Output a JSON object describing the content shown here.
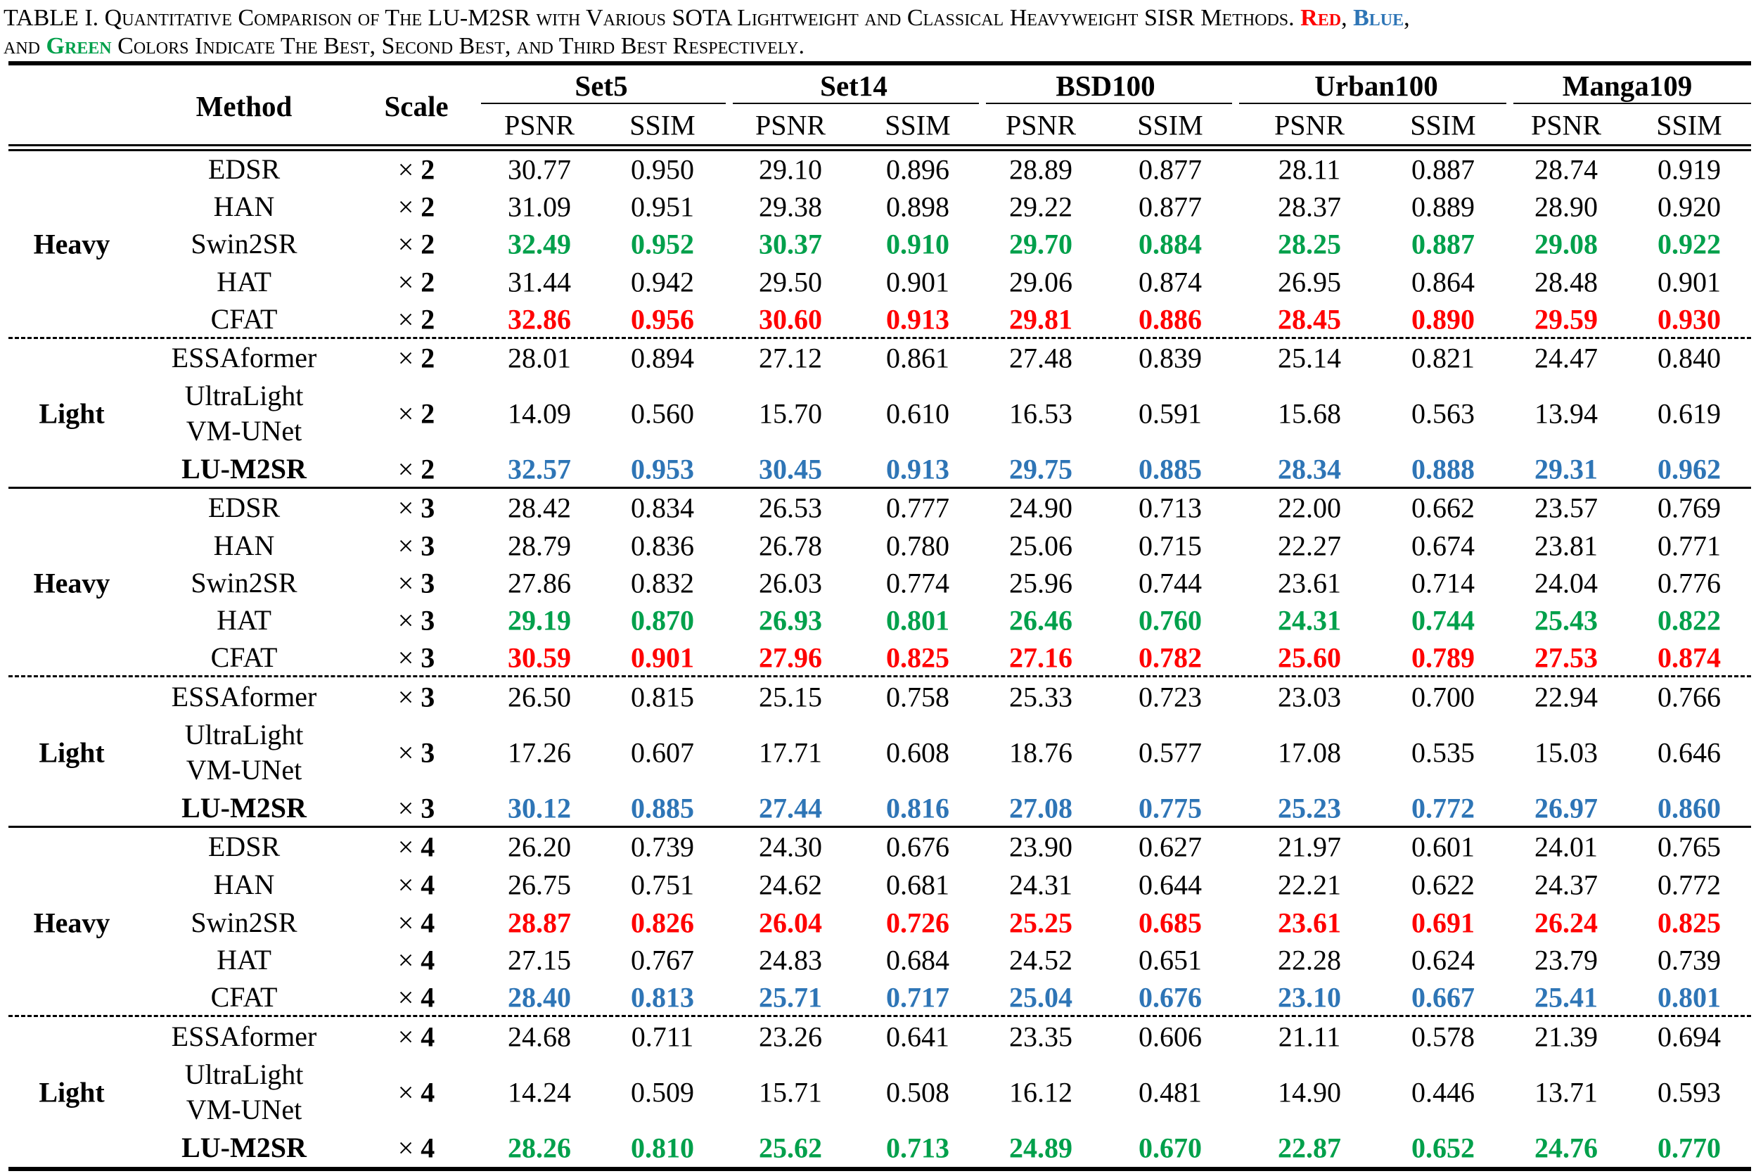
{
  "caption": {
    "lead": "TABLE I. ",
    "line1": "Quantitative Comparison of The LU-M2SR with Various SOTA Lightweight and Classical Heavyweight SISR Methods. ",
    "red": "Red",
    "sep1": ", ",
    "blue": "Blue",
    "sep2": ",",
    "and": "and ",
    "green": "Green",
    "line2": " Colors Indicate The Best, Second Best, and Third Best Respectively."
  },
  "colors": {
    "best": "#ff0000",
    "second": "#2e75b6",
    "third": "#00a04b"
  },
  "header": {
    "method": "Method",
    "scale": "Scale",
    "datasets": [
      "Set5",
      "Set14",
      "BSD100",
      "Urban100",
      "Manga109"
    ],
    "metrics": [
      "PSNR",
      "SSIM"
    ]
  },
  "blocks": [
    {
      "group": "Heavy",
      "rows": [
        {
          "method": [
            "EDSR"
          ],
          "bold": false,
          "scale_sym": "× ",
          "scale_n": "2",
          "values": [
            "30.77",
            "0.950",
            "29.10",
            "0.896",
            "28.89",
            "0.877",
            "28.11",
            "0.887",
            "28.74",
            "0.919"
          ],
          "rank": ""
        },
        {
          "method": [
            "HAN"
          ],
          "bold": false,
          "scale_sym": "× ",
          "scale_n": "2",
          "values": [
            "31.09",
            "0.951",
            "29.38",
            "0.898",
            "29.22",
            "0.877",
            "28.37",
            "0.889",
            "28.90",
            "0.920"
          ],
          "rank": ""
        },
        {
          "method": [
            "Swin2SR"
          ],
          "bold": false,
          "scale_sym": "× ",
          "scale_n": "2",
          "values": [
            "32.49",
            "0.952",
            "30.37",
            "0.910",
            "29.70",
            "0.884",
            "28.25",
            "0.887",
            "29.08",
            "0.922"
          ],
          "rank": "green"
        },
        {
          "method": [
            "HAT"
          ],
          "bold": false,
          "scale_sym": "× ",
          "scale_n": "2",
          "values": [
            "31.44",
            "0.942",
            "29.50",
            "0.901",
            "29.06",
            "0.874",
            "26.95",
            "0.864",
            "28.48",
            "0.901"
          ],
          "rank": ""
        },
        {
          "method": [
            "CFAT"
          ],
          "bold": false,
          "scale_sym": "× ",
          "scale_n": "2",
          "values": [
            "32.86",
            "0.956",
            "30.60",
            "0.913",
            "29.81",
            "0.886",
            "28.45",
            "0.890",
            "29.59",
            "0.930"
          ],
          "rank": "red"
        }
      ]
    },
    {
      "group": "Light",
      "rows": [
        {
          "method": [
            "ESSAformer"
          ],
          "bold": false,
          "scale_sym": "× ",
          "scale_n": "2",
          "values": [
            "28.01",
            "0.894",
            "27.12",
            "0.861",
            "27.48",
            "0.839",
            "25.14",
            "0.821",
            "24.47",
            "0.840"
          ],
          "rank": ""
        },
        {
          "method": [
            "UltraLight",
            "VM-UNet"
          ],
          "bold": false,
          "scale_sym": "× ",
          "scale_n": "2",
          "values": [
            "14.09",
            "0.560",
            "15.70",
            "0.610",
            "16.53",
            "0.591",
            "15.68",
            "0.563",
            "13.94",
            "0.619"
          ],
          "rank": ""
        },
        {
          "method": [
            "LU-M2SR"
          ],
          "bold": true,
          "scale_sym": "× ",
          "scale_n": "2",
          "values": [
            "32.57",
            "0.953",
            "30.45",
            "0.913",
            "29.75",
            "0.885",
            "28.34",
            "0.888",
            "29.31",
            "0.962"
          ],
          "rank": "blue"
        }
      ]
    },
    {
      "group": "Heavy",
      "rows": [
        {
          "method": [
            "EDSR"
          ],
          "bold": false,
          "scale_sym": "× ",
          "scale_n": "3",
          "values": [
            "28.42",
            "0.834",
            "26.53",
            "0.777",
            "24.90",
            "0.713",
            "22.00",
            "0.662",
            "23.57",
            "0.769"
          ],
          "rank": ""
        },
        {
          "method": [
            "HAN"
          ],
          "bold": false,
          "scale_sym": "× ",
          "scale_n": "3",
          "values": [
            "28.79",
            "0.836",
            "26.78",
            "0.780",
            "25.06",
            "0.715",
            "22.27",
            "0.674",
            "23.81",
            "0.771"
          ],
          "rank": ""
        },
        {
          "method": [
            "Swin2SR"
          ],
          "bold": false,
          "scale_sym": "× ",
          "scale_n": "3",
          "values": [
            "27.86",
            "0.832",
            "26.03",
            "0.774",
            "25.96",
            "0.744",
            "23.61",
            "0.714",
            "24.04",
            "0.776"
          ],
          "rank": ""
        },
        {
          "method": [
            "HAT"
          ],
          "bold": false,
          "scale_sym": "× ",
          "scale_n": "3",
          "values": [
            "29.19",
            "0.870",
            "26.93",
            "0.801",
            "26.46",
            "0.760",
            "24.31",
            "0.744",
            "25.43",
            "0.822"
          ],
          "rank": "green"
        },
        {
          "method": [
            "CFAT"
          ],
          "bold": false,
          "scale_sym": "× ",
          "scale_n": "3",
          "values": [
            "30.59",
            "0.901",
            "27.96",
            "0.825",
            "27.16",
            "0.782",
            "25.60",
            "0.789",
            "27.53",
            "0.874"
          ],
          "rank": "red"
        }
      ]
    },
    {
      "group": "Light",
      "rows": [
        {
          "method": [
            "ESSAformer"
          ],
          "bold": false,
          "scale_sym": "× ",
          "scale_n": "3",
          "values": [
            "26.50",
            "0.815",
            "25.15",
            "0.758",
            "25.33",
            "0.723",
            "23.03",
            "0.700",
            "22.94",
            "0.766"
          ],
          "rank": ""
        },
        {
          "method": [
            "UltraLight",
            "VM-UNet"
          ],
          "bold": false,
          "scale_sym": "× ",
          "scale_n": "3",
          "values": [
            "17.26",
            "0.607",
            "17.71",
            "0.608",
            "18.76",
            "0.577",
            "17.08",
            "0.535",
            "15.03",
            "0.646"
          ],
          "rank": ""
        },
        {
          "method": [
            "LU-M2SR"
          ],
          "bold": true,
          "scale_sym": "× ",
          "scale_n": "3",
          "values": [
            "30.12",
            "0.885",
            "27.44",
            "0.816",
            "27.08",
            "0.775",
            "25.23",
            "0.772",
            "26.97",
            "0.860"
          ],
          "rank": "blue"
        }
      ]
    },
    {
      "group": "Heavy",
      "rows": [
        {
          "method": [
            "EDSR"
          ],
          "bold": false,
          "scale_sym": "× ",
          "scale_n": "4",
          "values": [
            "26.20",
            "0.739",
            "24.30",
            "0.676",
            "23.90",
            "0.627",
            "21.97",
            "0.601",
            "24.01",
            "0.765"
          ],
          "rank": ""
        },
        {
          "method": [
            "HAN"
          ],
          "bold": false,
          "scale_sym": "× ",
          "scale_n": "4",
          "values": [
            "26.75",
            "0.751",
            "24.62",
            "0.681",
            "24.31",
            "0.644",
            "22.21",
            "0.622",
            "24.37",
            "0.772"
          ],
          "rank": ""
        },
        {
          "method": [
            "Swin2SR"
          ],
          "bold": false,
          "scale_sym": "× ",
          "scale_n": "4",
          "values": [
            "28.87",
            "0.826",
            "26.04",
            "0.726",
            "25.25",
            "0.685",
            "23.61",
            "0.691",
            "26.24",
            "0.825"
          ],
          "rank": "red"
        },
        {
          "method": [
            "HAT"
          ],
          "bold": false,
          "scale_sym": "× ",
          "scale_n": "4",
          "values": [
            "27.15",
            "0.767",
            "24.83",
            "0.684",
            "24.52",
            "0.651",
            "22.28",
            "0.624",
            "23.79",
            "0.739"
          ],
          "rank": ""
        },
        {
          "method": [
            "CFAT"
          ],
          "bold": false,
          "scale_sym": "× ",
          "scale_n": "4",
          "values": [
            "28.40",
            "0.813",
            "25.71",
            "0.717",
            "25.04",
            "0.676",
            "23.10",
            "0.667",
            "25.41",
            "0.801"
          ],
          "rank": "blue"
        }
      ]
    },
    {
      "group": "Light",
      "rows": [
        {
          "method": [
            "ESSAformer"
          ],
          "bold": false,
          "scale_sym": "× ",
          "scale_n": "4",
          "values": [
            "24.68",
            "0.711",
            "23.26",
            "0.641",
            "23.35",
            "0.606",
            "21.11",
            "0.578",
            "21.39",
            "0.694"
          ],
          "rank": ""
        },
        {
          "method": [
            "UltraLight",
            "VM-UNet"
          ],
          "bold": false,
          "scale_sym": "× ",
          "scale_n": "4",
          "values": [
            "14.24",
            "0.509",
            "15.71",
            "0.508",
            "16.12",
            "0.481",
            "14.90",
            "0.446",
            "13.71",
            "0.593"
          ],
          "rank": ""
        },
        {
          "method": [
            "LU-M2SR"
          ],
          "bold": true,
          "scale_sym": "× ",
          "scale_n": "4",
          "values": [
            "28.26",
            "0.810",
            "25.62",
            "0.713",
            "24.89",
            "0.670",
            "22.87",
            "0.652",
            "24.76",
            "0.770"
          ],
          "rank": "green"
        }
      ]
    }
  ]
}
